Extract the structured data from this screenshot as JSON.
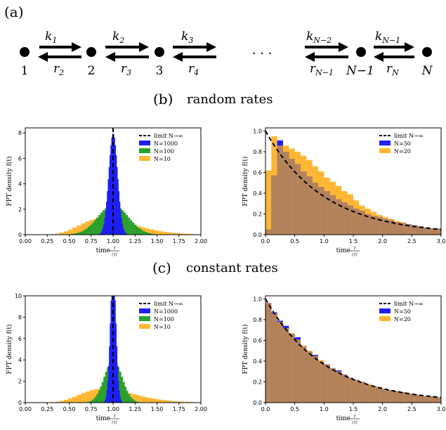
{
  "figure": {
    "panel_a_label": "(a)",
    "panel_b_label": "(b)",
    "panel_b_title": "random rates",
    "panel_c_label": "(c)",
    "panel_c_title": "constant rates",
    "ellipsis": "· · ·",
    "node_labels": [
      "1",
      "2",
      "3",
      "N−1",
      "N"
    ],
    "forward_rates": [
      {
        "base": "k",
        "sub": "1"
      },
      {
        "base": "k",
        "sub": "2"
      },
      {
        "base": "k",
        "sub": "3"
      },
      {
        "base": "k",
        "sub": "N−2"
      },
      {
        "base": "k",
        "sub": "N−1"
      }
    ],
    "backward_rates": [
      {
        "base": "r",
        "sub": "2"
      },
      {
        "base": "r",
        "sub": "3"
      },
      {
        "base": "r",
        "sub": "4"
      },
      {
        "base": "r",
        "sub": "N−1"
      },
      {
        "base": "r",
        "sub": "N"
      }
    ]
  },
  "colors": {
    "blue": "#1f1ff5",
    "green": "#2ca02c",
    "orange": "#ffb733",
    "overlap": "#b5835a",
    "limit": "#000000"
  },
  "chart_data": [
    {
      "id": "b-left",
      "type": "bar",
      "xlabel": "time",
      "xlabel_frac_num": "τ",
      "xlabel_frac_den": "⟨τ⟩",
      "ylabel": "FPT density f(t)",
      "xlim": [
        0,
        2
      ],
      "ylim": [
        0,
        8.4
      ],
      "xticks": [
        "0.00",
        "0.25",
        "0.50",
        "0.75",
        "1.00",
        "1.25",
        "1.50",
        "1.75",
        "2.00"
      ],
      "yticks": [
        "0",
        "2",
        "4",
        "6",
        "8"
      ],
      "ytick_values": [
        0,
        2,
        4,
        6,
        8
      ],
      "legend": [
        "limit N→∞",
        "N=1000",
        "N=100",
        "N=10"
      ],
      "series": [
        {
          "name": "N=10",
          "color": "orange",
          "shape": {
            "kind": "gamma",
            "k": 10
          },
          "range": [
            0.05,
            2.0
          ],
          "bins": 40
        },
        {
          "name": "N=100",
          "color": "green",
          "shape": {
            "kind": "gauss",
            "mu": 1,
            "sigma": 0.17
          },
          "range": [
            0.4,
            1.6
          ],
          "bins": 50
        },
        {
          "name": "N=1000",
          "color": "blue",
          "shape": {
            "kind": "gauss",
            "mu": 1,
            "sigma": 0.05
          },
          "range": [
            0.8,
            1.2
          ],
          "bins": 40
        }
      ],
      "limit_line": {
        "x": 1.0
      }
    },
    {
      "id": "b-right",
      "type": "bar",
      "xlabel": "time",
      "xlabel_frac_num": "τ",
      "xlabel_frac_den": "⟨τ⟩",
      "ylabel": "FPT density f(t)",
      "xlim": [
        0,
        3
      ],
      "ylim": [
        0,
        1.03
      ],
      "xticks": [
        "0.0",
        "0.5",
        "1.0",
        "1.5",
        "2.0",
        "2.5",
        "3.0"
      ],
      "yticks": [
        "0.0",
        "0.2",
        "0.4",
        "0.6",
        "0.8",
        "1.0"
      ],
      "ytick_values": [
        0,
        0.2,
        0.4,
        0.6,
        0.8,
        1.0
      ],
      "legend": [
        "limit N→∞",
        "N=50",
        "N=20"
      ],
      "bin_width": 0.1,
      "series": [
        {
          "name": "N=20",
          "color": "orange",
          "values": [
            0.62,
            0.95,
            0.86,
            0.86,
            0.83,
            0.8,
            0.76,
            0.72,
            0.66,
            0.61,
            0.55,
            0.51,
            0.47,
            0.42,
            0.39,
            0.33,
            0.28,
            0.25,
            0.22,
            0.19,
            0.17,
            0.15,
            0.13,
            0.12,
            0.1,
            0.09,
            0.08,
            0.07,
            0.06,
            0.06
          ]
        },
        {
          "name": "N=50",
          "color": "blue",
          "values": [
            0.05,
            0.57,
            0.91,
            0.8,
            0.73,
            0.68,
            0.61,
            0.56,
            0.5,
            0.46,
            0.42,
            0.38,
            0.34,
            0.31,
            0.28,
            0.25,
            0.23,
            0.2,
            0.18,
            0.17,
            0.15,
            0.14,
            0.12,
            0.11,
            0.1,
            0.09,
            0.08,
            0.07,
            0.06,
            0.06
          ]
        }
      ],
      "limit_line": {
        "kind": "exp",
        "rate": 1.0
      }
    },
    {
      "id": "c-left",
      "type": "bar",
      "xlabel": "time",
      "xlabel_frac_num": "τ",
      "xlabel_frac_den": "⟨τ⟩",
      "ylabel": "FPT density f(t)",
      "xlim": [
        0,
        2
      ],
      "ylim": [
        0,
        10
      ],
      "xticks": [
        "0.00",
        "0.25",
        "0.50",
        "0.75",
        "1.00",
        "1.25",
        "1.50",
        "1.75",
        "2.00"
      ],
      "yticks": [
        "0",
        "2",
        "4",
        "6",
        "8",
        "10"
      ],
      "ytick_values": [
        0,
        2,
        4,
        6,
        8,
        10
      ],
      "legend": [
        "limit N→∞",
        "N=1000",
        "N=100",
        "N=10"
      ],
      "series": [
        {
          "name": "N=10",
          "color": "orange",
          "shape": {
            "kind": "gamma",
            "k": 10
          },
          "range": [
            0.05,
            2.0
          ],
          "bins": 40
        },
        {
          "name": "N=100",
          "color": "green",
          "shape": {
            "kind": "gauss",
            "mu": 1,
            "sigma": 0.1
          },
          "range": [
            0.55,
            1.45
          ],
          "bins": 45
        },
        {
          "name": "N=1000",
          "color": "blue",
          "shape": {
            "kind": "gauss",
            "mu": 1,
            "sigma": 0.032
          },
          "range": [
            0.86,
            1.14
          ],
          "bins": 30
        }
      ],
      "limit_line": {
        "x": 1.0
      }
    },
    {
      "id": "c-right",
      "type": "bar",
      "xlabel": "time",
      "xlabel_frac_num": "τ",
      "xlabel_frac_den": "⟨τ⟩",
      "ylabel": "FPT density f(t)",
      "xlim": [
        0,
        3
      ],
      "ylim": [
        0,
        1.03
      ],
      "xticks": [
        "0.0",
        "0.5",
        "1.0",
        "1.5",
        "2.0",
        "2.5",
        "3.0"
      ],
      "yticks": [
        "0.0",
        "0.2",
        "0.4",
        "0.6",
        "0.8",
        "1.0"
      ],
      "ytick_values": [
        0,
        0.2,
        0.4,
        0.6,
        0.8,
        1.0
      ],
      "legend": [
        "limit N→∞",
        "N=50",
        "N=20"
      ],
      "bin_width": 0.1,
      "series": [
        {
          "name": "N=20",
          "color": "orange",
          "values": [
            0.96,
            0.86,
            0.78,
            0.72,
            0.67,
            0.61,
            0.55,
            0.5,
            0.45,
            0.41,
            0.37,
            0.33,
            0.3,
            0.27,
            0.24,
            0.22,
            0.2,
            0.18,
            0.16,
            0.15,
            0.13,
            0.12,
            0.11,
            0.1,
            0.09,
            0.08,
            0.07,
            0.06,
            0.06,
            0.05
          ]
        },
        {
          "name": "N=50",
          "color": "blue",
          "values": [
            0.96,
            0.87,
            0.79,
            0.74,
            0.66,
            0.63,
            0.54,
            0.49,
            0.46,
            0.4,
            0.37,
            0.33,
            0.31,
            0.27,
            0.24,
            0.22,
            0.2,
            0.17,
            0.16,
            0.14,
            0.13,
            0.12,
            0.11,
            0.1,
            0.08,
            0.08,
            0.07,
            0.06,
            0.06,
            0.05
          ]
        }
      ],
      "limit_line": {
        "kind": "exp",
        "rate": 1.0
      }
    }
  ]
}
